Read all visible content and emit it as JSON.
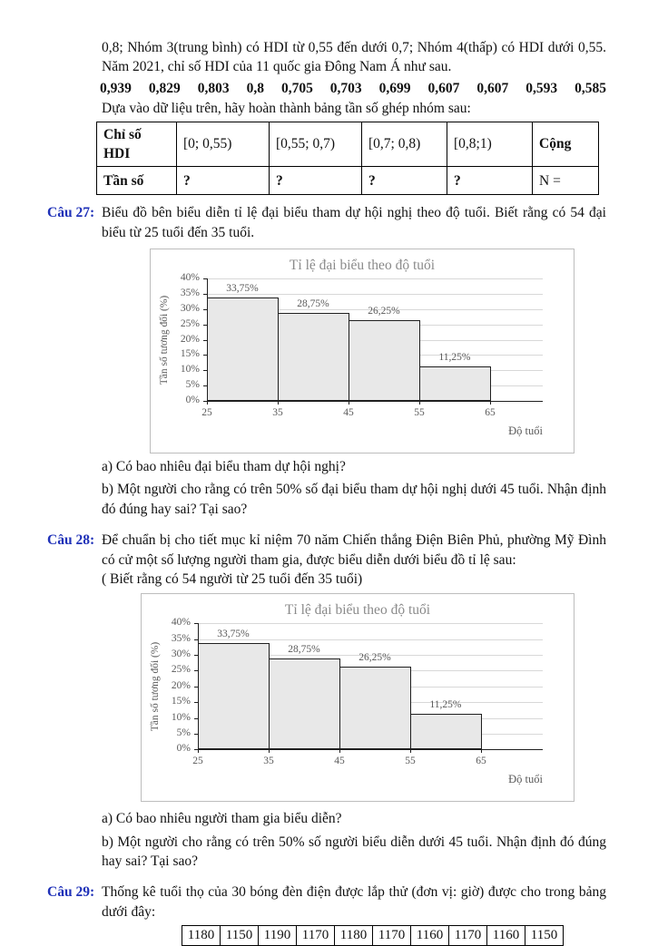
{
  "colors": {
    "question_label": "#1f31b8",
    "chart_title": "#8a8a8a",
    "chart_tick": "#595959",
    "gridline": "#d8d8d8",
    "bar_fill": "#e8e8e8",
    "bar_border": "#1f1f1f"
  },
  "intro": {
    "paragraph": "0,8; Nhóm 3(trung bình) có HDI từ 0,55 đến dưới 0,7; Nhóm 4(thấp) có HDI dưới 0,55. Năm 2021, chỉ số HDI của 11 quốc gia Đông Nam Á như sau.",
    "data_values": [
      "0,939",
      "0,829",
      "0,803",
      "0,8",
      "0,705",
      "0,703",
      "0,699",
      "0,607",
      "0,607",
      "0,593",
      "0,585"
    ],
    "prompt": "Dựa vào dữ liệu trên, hãy hoàn thành bảng tần số ghép nhóm sau:"
  },
  "hdi_table": {
    "headers": [
      "Chỉ số HDI",
      "[0; 0,55)",
      "[0,55; 0,7)",
      "[0,7; 0,8)",
      "[0,8;1)",
      "Cộng"
    ],
    "row": [
      "Tần số",
      "?",
      "?",
      "?",
      "?",
      "N ="
    ]
  },
  "q27": {
    "label": "Câu 27:",
    "text": "Biểu đồ bên biểu diễn tỉ lệ đại biểu tham dự hội nghị theo độ tuổi. Biết rằng có 54 đại biểu từ 25 tuổi đến 35 tuổi.",
    "qa": "a) Có bao nhiêu đại biểu tham dự hội nghị?",
    "qb": "b) Một người cho rằng có trên 50% số đại biểu tham dự hội nghị dưới 45 tuổi. Nhận định đó đúng hay sai? Tại sao?"
  },
  "q28": {
    "label": "Câu 28:",
    "text": "Để chuẩn bị cho tiết mục kỉ niệm 70 năm Chiến thắng Điện Biên Phủ, phường Mỹ Đình có cử một số lượng người tham gia, được biểu diễn dưới biểu đồ tỉ lệ sau:",
    "note": "( Biết rằng có 54 người từ 25 tuổi đến 35 tuổi)",
    "qa": "a) Có bao nhiêu người tham gia biểu diễn?",
    "qb": "b) Một người cho rằng có trên 50% số người biểu diễn dưới 45 tuổi. Nhận định đó đúng hay sai? Tại sao?"
  },
  "q29": {
    "label": "Câu 29:",
    "text": "Thống kê tuổi thọ của 30 bóng đèn điện được lắp thử (đơn vị: giờ) được cho trong bảng dưới đây:",
    "values": [
      "1180",
      "1150",
      "1190",
      "1170",
      "1180",
      "1170",
      "1160",
      "1170",
      "1160",
      "1150"
    ]
  },
  "chart_data": [
    {
      "type": "bar",
      "subtype": "histogram",
      "title": "Tỉ lệ đại biểu theo độ tuổi",
      "xlabel": "Độ tuổi",
      "ylabel": "Tần số tương đối (%)",
      "x_ticks": [
        "25",
        "35",
        "45",
        "55",
        "65"
      ],
      "bin_edges": [
        25,
        35,
        45,
        55,
        65
      ],
      "values": [
        33.75,
        28.75,
        26.25,
        11.25
      ],
      "value_labels": [
        "33,75%",
        "28,75%",
        "26,25%",
        "11,25%"
      ],
      "ylim": [
        0,
        40
      ],
      "ytick_step": 5,
      "ytick_labels": [
        "40%",
        "35%",
        "30%",
        "25%",
        "20%",
        "15%",
        "10%",
        "5%",
        "0%"
      ],
      "grid": true,
      "legend": false
    },
    {
      "type": "bar",
      "subtype": "histogram",
      "title": "Tỉ lệ đại biểu theo độ tuổi",
      "xlabel": "Độ tuổi",
      "ylabel": "Tần số tương đối (%)",
      "x_ticks": [
        "25",
        "35",
        "45",
        "55",
        "65"
      ],
      "bin_edges": [
        25,
        35,
        45,
        55,
        65
      ],
      "values": [
        33.75,
        28.75,
        26.25,
        11.25
      ],
      "value_labels": [
        "33,75%",
        "28,75%",
        "26,25%",
        "11,25%"
      ],
      "ylim": [
        0,
        40
      ],
      "ytick_step": 5,
      "ytick_labels": [
        "40%",
        "35%",
        "30%",
        "25%",
        "20%",
        "15%",
        "10%",
        "5%",
        "0%"
      ],
      "grid": true,
      "legend": false
    }
  ]
}
